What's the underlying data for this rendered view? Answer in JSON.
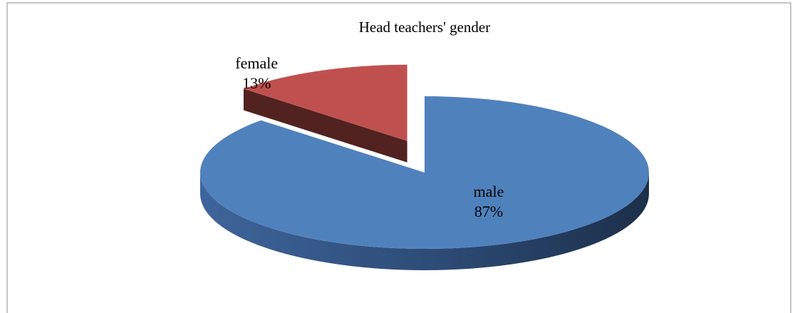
{
  "chart_data": {
    "type": "pie",
    "title": "Head teachers' gender",
    "categories": [
      "male",
      "female"
    ],
    "values": [
      87,
      13
    ],
    "value_labels": [
      "87%",
      "13%"
    ],
    "colors": [
      "#4f81bd",
      "#c0504d"
    ],
    "exploded": [
      false,
      true
    ]
  }
}
